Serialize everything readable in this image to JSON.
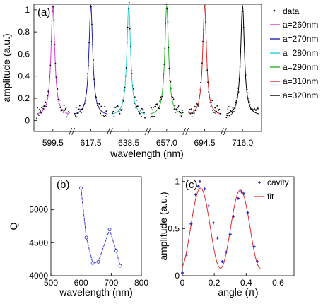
{
  "chart_data": [
    {
      "panel": "(a)",
      "type": "line",
      "ylabel": "amplitude (a.u.)",
      "xlabel": "wavelength (nm)",
      "ylim": [
        -0.1,
        1.05
      ],
      "yticks": [
        "0",
        "0.2",
        "0.4",
        "0.6",
        "0.8",
        "1"
      ],
      "legend_position": "top-right",
      "legend_data_label": "data",
      "series": [
        {
          "name": "a=260nm",
          "color": "#d23cd2",
          "center": 599.5
        },
        {
          "name": "a=270nm",
          "color": "#1e1eb4",
          "center": 617.5
        },
        {
          "name": "a=280nm",
          "color": "#28d2d2",
          "center": 638.5
        },
        {
          "name": "a=290nm",
          "color": "#28b428",
          "center": 657.0
        },
        {
          "name": "a=310nm",
          "color": "#dc2828",
          "center": 694.5
        },
        {
          "name": "a=320nm",
          "color": "#000000",
          "center": 716.0
        }
      ],
      "xtick_labels": [
        "599.5",
        "617.5",
        "638.5",
        "657.0",
        "694.5",
        "716.0"
      ],
      "peak_amplitude": 1.0
    },
    {
      "panel": "(b)",
      "type": "line",
      "xlabel": "wavelength (nm)",
      "ylabel": "Q",
      "xlim": [
        500,
        800
      ],
      "ylim": [
        4000,
        5500
      ],
      "xticks": [
        500,
        600,
        700,
        800
      ],
      "yticks": [
        4000,
        4500,
        5000
      ],
      "color": "#3c3cdc",
      "x": [
        599.5,
        617.5,
        638.5,
        657.0,
        694.5,
        716.0,
        730.0
      ],
      "y": [
        5330,
        4580,
        4190,
        4210,
        4700,
        4380,
        4150
      ]
    },
    {
      "panel": "(c)",
      "type": "scatter",
      "xlabel": "angle (π)",
      "ylabel": "amplitude (a.u.)",
      "xlim": [
        0,
        0.7
      ],
      "ylim": [
        0,
        1.05
      ],
      "xticks": [
        "0",
        "0.2",
        "0.4",
        "0.6"
      ],
      "yticks": [
        "0",
        "0.5",
        "1"
      ],
      "series": [
        {
          "name": "cavity",
          "color": "#2828dc",
          "x": [
            0.0,
            0.028,
            0.055,
            0.083,
            0.1,
            0.11,
            0.14,
            0.165,
            0.195,
            0.22,
            0.25,
            0.275,
            0.3,
            0.32,
            0.35,
            0.37,
            0.385,
            0.41,
            0.45,
            0.47
          ],
          "y": [
            0.03,
            0.22,
            0.55,
            0.86,
            0.95,
            1.0,
            0.92,
            0.74,
            0.56,
            0.4,
            0.15,
            0.25,
            0.44,
            0.63,
            0.82,
            0.89,
            0.87,
            0.67,
            0.31,
            0.15
          ]
        },
        {
          "name": "fit",
          "color": "#dc2828"
        }
      ]
    }
  ],
  "labels": {
    "panel_a": "(a)",
    "panel_b": "(b)",
    "panel_c": "(c)",
    "a_xlabel": "wavelength (nm)",
    "a_ylabel": "amplitude (a.u.)",
    "b_xlabel": "wavelength (nm)",
    "b_ylabel": "Q",
    "c_xlabel": "angle (π)",
    "c_ylabel": "amplitude (a.u.)",
    "legend_data": "data",
    "legend_cavity": "cavity",
    "legend_fit": "fit"
  }
}
